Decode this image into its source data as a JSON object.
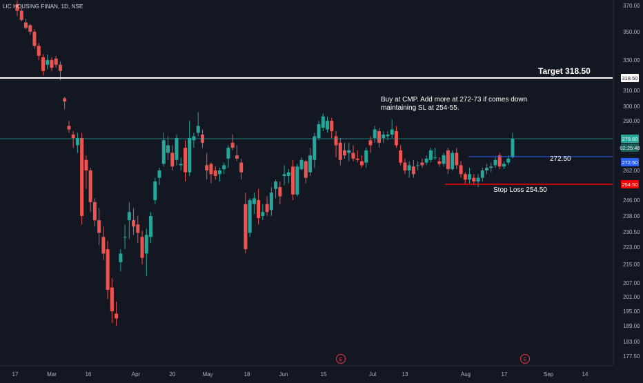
{
  "header": {
    "symbol_line": "LIC HOUSING FINAN, 1D, NSE"
  },
  "colors": {
    "background": "#131722",
    "up": "#26a69a",
    "down": "#ef5350",
    "axis_text": "#b2b5be",
    "target_line": "#ffffff",
    "buy_line": "#2962ff",
    "stop_line": "#ff0000",
    "current_price_line": "#26a69a"
  },
  "chart_data": {
    "type": "candlestick",
    "y_axis": {
      "ticks": [
        370.0,
        350.0,
        330.0,
        318.5,
        310.0,
        300.0,
        290.0,
        279.6,
        272.5,
        262.0,
        254.5,
        246.0,
        238.0,
        230.5,
        223.0,
        215.0,
        207.0,
        201.0,
        195.0,
        189.0,
        183.0,
        177.5
      ],
      "range": [
        173,
        374
      ]
    },
    "x_axis": {
      "labels": [
        "17",
        "Mar",
        "16",
        "Apr",
        "20",
        "May",
        "18",
        "Jun",
        "15",
        "Jul",
        "13",
        "Aug",
        "17",
        "Sep",
        "14"
      ]
    },
    "candles": [
      {
        "o": 371,
        "h": 374,
        "l": 362,
        "c": 366
      },
      {
        "o": 366,
        "h": 368,
        "l": 358,
        "c": 359
      },
      {
        "o": 357,
        "h": 360,
        "l": 352,
        "c": 353
      },
      {
        "o": 355,
        "h": 356,
        "l": 348,
        "c": 350
      },
      {
        "o": 350,
        "h": 352,
        "l": 338,
        "c": 340
      },
      {
        "o": 340,
        "h": 342,
        "l": 330,
        "c": 333
      },
      {
        "o": 332,
        "h": 334,
        "l": 320,
        "c": 323
      },
      {
        "o": 327,
        "h": 334,
        "l": 324,
        "c": 330
      },
      {
        "o": 330,
        "h": 332,
        "l": 323,
        "c": 325
      },
      {
        "o": 331,
        "h": 333,
        "l": 325,
        "c": 327
      },
      {
        "o": 327,
        "h": 329,
        "l": 317,
        "c": 323
      },
      {
        "o": 305,
        "h": 306,
        "l": 298,
        "c": 303
      },
      {
        "o": 287,
        "h": 290,
        "l": 283,
        "c": 285
      },
      {
        "o": 282,
        "h": 284,
        "l": 276,
        "c": 280
      },
      {
        "o": 277,
        "h": 283,
        "l": 274,
        "c": 280
      },
      {
        "o": 280,
        "h": 283,
        "l": 234,
        "c": 238
      },
      {
        "o": 270,
        "h": 273,
        "l": 252,
        "c": 262
      },
      {
        "o": 262,
        "h": 264,
        "l": 240,
        "c": 245
      },
      {
        "o": 245,
        "h": 247,
        "l": 233,
        "c": 236
      },
      {
        "o": 236,
        "h": 242,
        "l": 224,
        "c": 230
      },
      {
        "o": 228,
        "h": 233,
        "l": 217,
        "c": 220
      },
      {
        "o": 222,
        "h": 226,
        "l": 200,
        "c": 204
      },
      {
        "o": 205,
        "h": 209,
        "l": 190,
        "c": 195
      },
      {
        "o": 194,
        "h": 199,
        "l": 189,
        "c": 192
      },
      {
        "o": 216,
        "h": 222,
        "l": 212,
        "c": 220
      },
      {
        "o": 228,
        "h": 234,
        "l": 222,
        "c": 228
      },
      {
        "o": 236,
        "h": 245,
        "l": 227,
        "c": 240
      },
      {
        "o": 236,
        "h": 242,
        "l": 229,
        "c": 233
      },
      {
        "o": 234,
        "h": 238,
        "l": 225,
        "c": 230
      },
      {
        "o": 228,
        "h": 231,
        "l": 215,
        "c": 218
      },
      {
        "o": 220,
        "h": 232,
        "l": 210,
        "c": 229
      },
      {
        "o": 228,
        "h": 240,
        "l": 225,
        "c": 238
      },
      {
        "o": 246,
        "h": 258,
        "l": 244,
        "c": 256
      },
      {
        "o": 258,
        "h": 264,
        "l": 254,
        "c": 262
      },
      {
        "o": 267,
        "h": 283,
        "l": 265,
        "c": 279
      },
      {
        "o": 274,
        "h": 281,
        "l": 270,
        "c": 277
      },
      {
        "o": 274,
        "h": 277,
        "l": 262,
        "c": 265
      },
      {
        "o": 270,
        "h": 282,
        "l": 266,
        "c": 280
      },
      {
        "o": 266,
        "h": 272,
        "l": 262,
        "c": 267
      },
      {
        "o": 276,
        "h": 279,
        "l": 256,
        "c": 261
      },
      {
        "o": 261,
        "h": 290,
        "l": 259,
        "c": 280
      },
      {
        "o": 279,
        "h": 283,
        "l": 276,
        "c": 281
      },
      {
        "o": 283,
        "h": 296,
        "l": 281,
        "c": 287
      },
      {
        "o": 282,
        "h": 285,
        "l": 276,
        "c": 278
      },
      {
        "o": 266,
        "h": 274,
        "l": 257,
        "c": 262
      },
      {
        "o": 267,
        "h": 268,
        "l": 255,
        "c": 260
      },
      {
        "o": 262,
        "h": 265,
        "l": 257,
        "c": 259
      },
      {
        "o": 260,
        "h": 264,
        "l": 256,
        "c": 262
      },
      {
        "o": 263,
        "h": 268,
        "l": 260,
        "c": 266
      },
      {
        "o": 271,
        "h": 277,
        "l": 264,
        "c": 276
      },
      {
        "o": 278,
        "h": 282,
        "l": 275,
        "c": 276
      },
      {
        "o": 273,
        "h": 277,
        "l": 269,
        "c": 271
      },
      {
        "o": 268,
        "h": 271,
        "l": 257,
        "c": 261
      },
      {
        "o": 244,
        "h": 250,
        "l": 220,
        "c": 222
      },
      {
        "o": 230,
        "h": 247,
        "l": 228,
        "c": 246
      },
      {
        "o": 244,
        "h": 250,
        "l": 239,
        "c": 247
      },
      {
        "o": 246,
        "h": 252,
        "l": 234,
        "c": 237
      },
      {
        "o": 238,
        "h": 244,
        "l": 236,
        "c": 240
      },
      {
        "o": 244,
        "h": 248,
        "l": 238,
        "c": 240
      },
      {
        "o": 241,
        "h": 253,
        "l": 238,
        "c": 250
      },
      {
        "o": 252,
        "h": 257,
        "l": 247,
        "c": 256
      },
      {
        "o": 253,
        "h": 256,
        "l": 244,
        "c": 248
      },
      {
        "o": 259,
        "h": 266,
        "l": 254,
        "c": 260
      },
      {
        "o": 259,
        "h": 263,
        "l": 255,
        "c": 261
      },
      {
        "o": 265,
        "h": 270,
        "l": 246,
        "c": 249
      },
      {
        "o": 249,
        "h": 267,
        "l": 248,
        "c": 265
      },
      {
        "o": 263,
        "h": 272,
        "l": 262,
        "c": 270
      },
      {
        "o": 269,
        "h": 270,
        "l": 255,
        "c": 258
      },
      {
        "o": 261,
        "h": 276,
        "l": 259,
        "c": 273
      },
      {
        "o": 270,
        "h": 283,
        "l": 264,
        "c": 281
      },
      {
        "o": 280,
        "h": 290,
        "l": 279,
        "c": 288
      },
      {
        "o": 286,
        "h": 295,
        "l": 284,
        "c": 293
      },
      {
        "o": 285,
        "h": 293,
        "l": 283,
        "c": 290
      },
      {
        "o": 290,
        "h": 292,
        "l": 280,
        "c": 284
      },
      {
        "o": 281,
        "h": 284,
        "l": 272,
        "c": 277
      },
      {
        "o": 278,
        "h": 280,
        "l": 266,
        "c": 270
      },
      {
        "o": 275,
        "h": 278,
        "l": 271,
        "c": 273
      },
      {
        "o": 274,
        "h": 278,
        "l": 269,
        "c": 275
      },
      {
        "o": 274,
        "h": 277,
        "l": 269,
        "c": 271
      },
      {
        "o": 271,
        "h": 275,
        "l": 268,
        "c": 270
      },
      {
        "o": 269,
        "h": 273,
        "l": 264,
        "c": 266
      },
      {
        "o": 268,
        "h": 276,
        "l": 264,
        "c": 275
      },
      {
        "o": 279,
        "h": 281,
        "l": 274,
        "c": 277
      },
      {
        "o": 280,
        "h": 287,
        "l": 278,
        "c": 285
      },
      {
        "o": 284,
        "h": 286,
        "l": 276,
        "c": 278
      },
      {
        "o": 280,
        "h": 284,
        "l": 278,
        "c": 282
      },
      {
        "o": 281,
        "h": 284,
        "l": 279,
        "c": 282
      },
      {
        "o": 282,
        "h": 291,
        "l": 280,
        "c": 285
      },
      {
        "o": 284,
        "h": 287,
        "l": 276,
        "c": 277
      },
      {
        "o": 275,
        "h": 277,
        "l": 266,
        "c": 268
      },
      {
        "o": 268,
        "h": 271,
        "l": 260,
        "c": 262
      },
      {
        "o": 262,
        "h": 269,
        "l": 258,
        "c": 266
      },
      {
        "o": 265,
        "h": 270,
        "l": 258,
        "c": 260
      },
      {
        "o": 266,
        "h": 269,
        "l": 262,
        "c": 266
      },
      {
        "o": 268,
        "h": 271,
        "l": 264,
        "c": 266
      },
      {
        "o": 268,
        "h": 273,
        "l": 266,
        "c": 271
      },
      {
        "o": 270,
        "h": 276,
        "l": 268,
        "c": 275
      },
      {
        "o": 272,
        "h": 276,
        "l": 270,
        "c": 272
      },
      {
        "o": 269,
        "h": 272,
        "l": 265,
        "c": 267
      },
      {
        "o": 267,
        "h": 274,
        "l": 265,
        "c": 273
      },
      {
        "o": 275,
        "h": 276,
        "l": 260,
        "c": 263
      },
      {
        "o": 263,
        "h": 275,
        "l": 262,
        "c": 274
      },
      {
        "o": 274,
        "h": 276,
        "l": 263,
        "c": 266
      },
      {
        "o": 266,
        "h": 269,
        "l": 258,
        "c": 260
      },
      {
        "o": 260,
        "h": 261,
        "l": 255,
        "c": 257
      },
      {
        "o": 257,
        "h": 264,
        "l": 255,
        "c": 260
      },
      {
        "o": 258,
        "h": 260,
        "l": 254,
        "c": 256
      },
      {
        "o": 256,
        "h": 260,
        "l": 253,
        "c": 258
      },
      {
        "o": 258,
        "h": 264,
        "l": 256,
        "c": 262
      },
      {
        "o": 262,
        "h": 267,
        "l": 260,
        "c": 264
      },
      {
        "o": 264,
        "h": 268,
        "l": 261,
        "c": 265
      },
      {
        "o": 266,
        "h": 272,
        "l": 264,
        "c": 270
      },
      {
        "o": 273,
        "h": 274,
        "l": 263,
        "c": 265
      },
      {
        "o": 265,
        "h": 269,
        "l": 263,
        "c": 267
      },
      {
        "o": 268,
        "h": 273,
        "l": 266,
        "c": 271
      },
      {
        "o": 272,
        "h": 283,
        "l": 271,
        "c": 279.6
      }
    ]
  },
  "price_labels": {
    "target": "318.50",
    "current": "279.60",
    "countdown": "02:25:48",
    "buy": "272.50",
    "stop": "254.50"
  },
  "annotations": {
    "target_text": "Target 318.50",
    "buy_text": "272.50",
    "stop_text": "Stop Loss 254.50",
    "note_line1": "Buy at CMP. Add more at 272-73 if comes down",
    "note_line2": "maintaining SL at 254-55."
  },
  "events": [
    "E",
    "E"
  ]
}
